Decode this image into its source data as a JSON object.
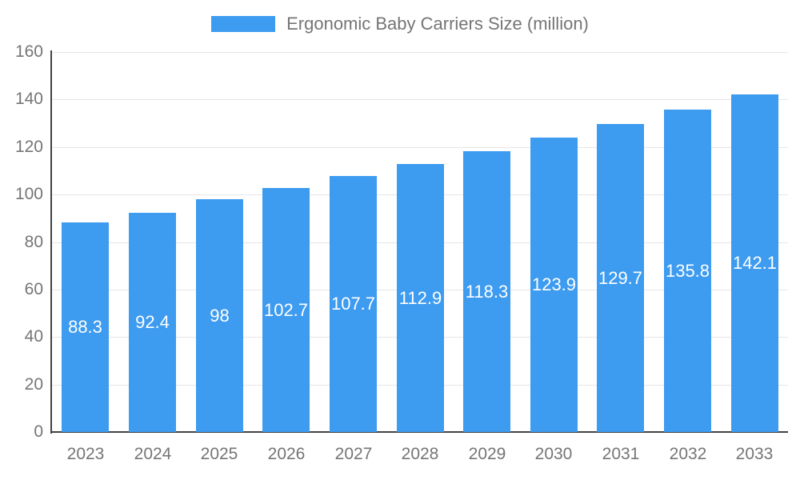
{
  "chart_data": {
    "type": "bar",
    "title": "Ergonomic Baby Carriers Size (million)",
    "legend_entries": [
      "Ergonomic Baby Carriers Size (million)"
    ],
    "legend_position": "top",
    "categories": [
      "2023",
      "2024",
      "2025",
      "2026",
      "2027",
      "2028",
      "2029",
      "2030",
      "2031",
      "2032",
      "2033"
    ],
    "values": [
      88.3,
      92.4,
      98,
      102.7,
      107.7,
      112.9,
      118.3,
      123.9,
      129.7,
      135.8,
      142.1
    ],
    "xlabel": "",
    "ylabel": "",
    "ylim": [
      0,
      160
    ],
    "ytick_step": 20,
    "ytick_labels": [
      "0",
      "20",
      "40",
      "60",
      "80",
      "100",
      "120",
      "140",
      "160"
    ],
    "grid": true,
    "colors": {
      "bar": "#3d9bf0",
      "value_label_text": "#ffffff",
      "axis_text": "#757575",
      "gridline": "#e6e6e6",
      "axis_line": "#424242",
      "background": "#ffffff"
    }
  }
}
